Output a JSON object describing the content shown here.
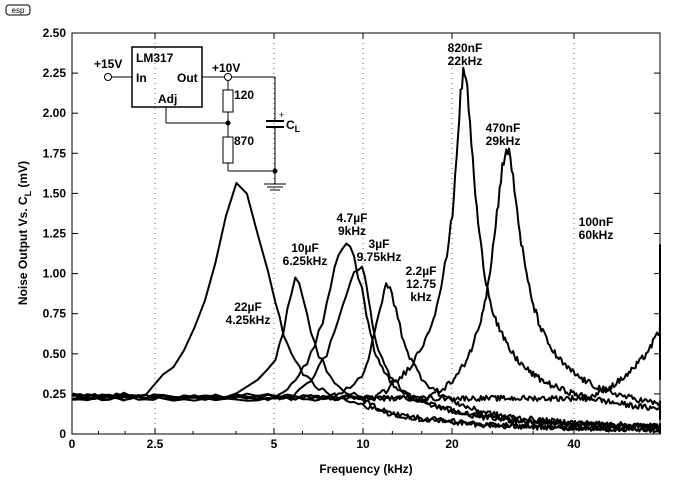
{
  "logo_text": "esp",
  "chart_data": {
    "type": "line",
    "xlabel": "Frequency (kHz)",
    "ylabel_main": "Noise Output Vs. C",
    "ylabel_sub": "L",
    "ylabel_unit": " (mV)",
    "ylim": [
      0,
      2.5
    ],
    "y_ticks": [
      "0",
      "0.25",
      "0.50",
      "0.75",
      "1.00",
      "1.25",
      "1.50",
      "1.75",
      "2.00",
      "2.25",
      "2.50"
    ],
    "x_ticks": [
      {
        "label": "0",
        "value": 0
      },
      {
        "label": "2.5",
        "value": 2.5
      },
      {
        "label": "5",
        "value": 5
      },
      {
        "label": "10",
        "value": 10
      },
      {
        "label": "20",
        "value": 20
      },
      {
        "label": "40",
        "value": 40
      }
    ],
    "grid": "vertical-dotted",
    "series": [
      {
        "name": "22µF 4.25kHz",
        "peak_khz": 4.25,
        "peak_mv": 1.6
      },
      {
        "name": "10µF 6.25kHz",
        "peak_khz": 6.25,
        "peak_mv": 0.97
      },
      {
        "name": "4.7µF 9kHz",
        "peak_khz": 9,
        "peak_mv": 1.2
      },
      {
        "name": "3µF 9.75kHz",
        "peak_khz": 9.75,
        "peak_mv": 1.05
      },
      {
        "name": "2.2µF 12.75 kHz",
        "peak_khz": 12.75,
        "peak_mv": 0.92
      },
      {
        "name": "820nF 22kHz",
        "peak_khz": 22,
        "peak_mv": 2.25
      },
      {
        "name": "470nF 29kHz",
        "peak_khz": 29,
        "peak_mv": 1.77
      },
      {
        "name": "100nF 60kHz",
        "peak_khz": 60,
        "peak_mv": 1.15
      }
    ],
    "annotations": [
      {
        "lines": [
          "22µF",
          "4.25kHz"
        ]
      },
      {
        "lines": [
          "10µF",
          "6.25kHz"
        ]
      },
      {
        "lines": [
          "4.7µF",
          "9kHz"
        ]
      },
      {
        "lines": [
          "3µF",
          "9.75kHz"
        ]
      },
      {
        "lines": [
          "2.2µF",
          "12.75",
          "kHz"
        ]
      },
      {
        "lines": [
          "820nF",
          "22kHz"
        ]
      },
      {
        "lines": [
          "470nF",
          "29kHz"
        ]
      },
      {
        "lines": [
          "100nF",
          "60kHz"
        ]
      }
    ]
  },
  "schematic": {
    "chip": "LM317",
    "pin_in": "In",
    "pin_out": "Out",
    "pin_adj": "Adj",
    "input_voltage": "+15V",
    "output_voltage": "+10V",
    "r1": "120",
    "r2": "870",
    "cap_label": "C",
    "cap_sub": "L",
    "cap_plus": "+"
  }
}
